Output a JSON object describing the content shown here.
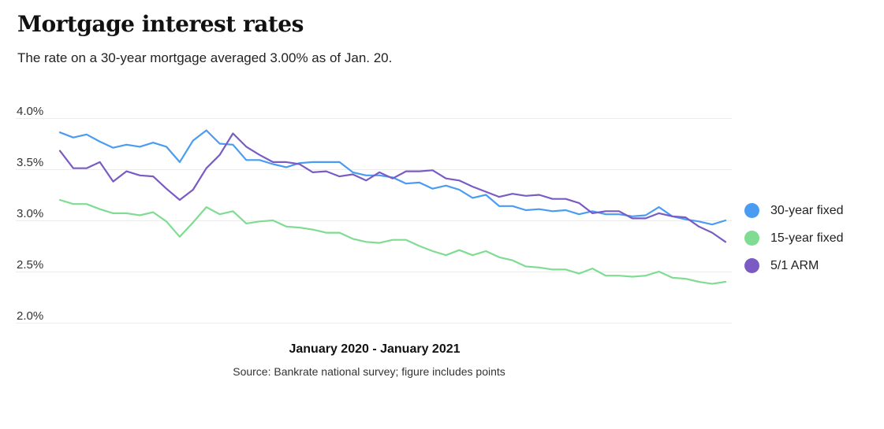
{
  "title": "Mortgage interest rates",
  "subtitle": "The rate on a 30-year mortgage averaged 3.00% as of Jan. 20.",
  "chart_data": {
    "type": "line",
    "title": "Mortgage interest rates",
    "xlabel": "January 2020 - January 2021",
    "ylabel": "",
    "ylim": [
      2.0,
      4.0
    ],
    "yticks": [
      "4.0%",
      "3.5%",
      "3.0%",
      "2.5%",
      "2.0%"
    ],
    "ytick_values": [
      4.0,
      3.5,
      3.0,
      2.5,
      2.0
    ],
    "grid": "horizontal",
    "legend_position": "right",
    "source": "Source: Bankrate national survey; figure includes points",
    "x": [
      1,
      2,
      3,
      4,
      5,
      6,
      7,
      8,
      9,
      10,
      11,
      12,
      13,
      14,
      15,
      16,
      17,
      18,
      19,
      20,
      21,
      22,
      23,
      24,
      25,
      26,
      27,
      28,
      29,
      30,
      31,
      32,
      33,
      34,
      35,
      36,
      37,
      38,
      39,
      40,
      41,
      42,
      43,
      44,
      45,
      46,
      47,
      48,
      49,
      50,
      51
    ],
    "series": [
      {
        "name": "30-year fixed",
        "color": "#4a9cf2",
        "values": [
          3.86,
          3.81,
          3.84,
          3.77,
          3.71,
          3.74,
          3.72,
          3.76,
          3.72,
          3.57,
          3.78,
          3.88,
          3.75,
          3.74,
          3.59,
          3.59,
          3.55,
          3.52,
          3.56,
          3.57,
          3.57,
          3.57,
          3.47,
          3.44,
          3.44,
          3.42,
          3.36,
          3.37,
          3.31,
          3.34,
          3.3,
          3.22,
          3.25,
          3.14,
          3.14,
          3.1,
          3.11,
          3.09,
          3.1,
          3.06,
          3.09,
          3.06,
          3.06,
          3.04,
          3.05,
          3.13,
          3.04,
          3.01,
          2.99,
          2.96,
          3.0
        ]
      },
      {
        "name": "15-year fixed",
        "color": "#7fdc92",
        "values": [
          3.2,
          3.16,
          3.16,
          3.11,
          3.07,
          3.07,
          3.05,
          3.08,
          2.99,
          2.84,
          2.98,
          3.13,
          3.06,
          3.09,
          2.97,
          2.99,
          3.0,
          2.94,
          2.93,
          2.91,
          2.88,
          2.88,
          2.82,
          2.79,
          2.78,
          2.81,
          2.81,
          2.75,
          2.7,
          2.66,
          2.71,
          2.66,
          2.7,
          2.64,
          2.61,
          2.55,
          2.54,
          2.52,
          2.52,
          2.48,
          2.53,
          2.46,
          2.46,
          2.45,
          2.46,
          2.5,
          2.44,
          2.43,
          2.4,
          2.38,
          2.4
        ]
      },
      {
        "name": "5/1 ARM",
        "color": "#7a5bc4",
        "values": [
          3.68,
          3.51,
          3.51,
          3.57,
          3.38,
          3.48,
          3.44,
          3.43,
          3.31,
          3.2,
          3.3,
          3.51,
          3.64,
          3.85,
          3.72,
          3.64,
          3.57,
          3.57,
          3.55,
          3.47,
          3.48,
          3.43,
          3.45,
          3.39,
          3.47,
          3.41,
          3.48,
          3.48,
          3.49,
          3.41,
          3.39,
          3.33,
          3.28,
          3.23,
          3.26,
          3.24,
          3.25,
          3.21,
          3.21,
          3.17,
          3.07,
          3.09,
          3.09,
          3.02,
          3.02,
          3.07,
          3.04,
          3.03,
          2.94,
          2.88,
          2.79
        ]
      }
    ]
  }
}
